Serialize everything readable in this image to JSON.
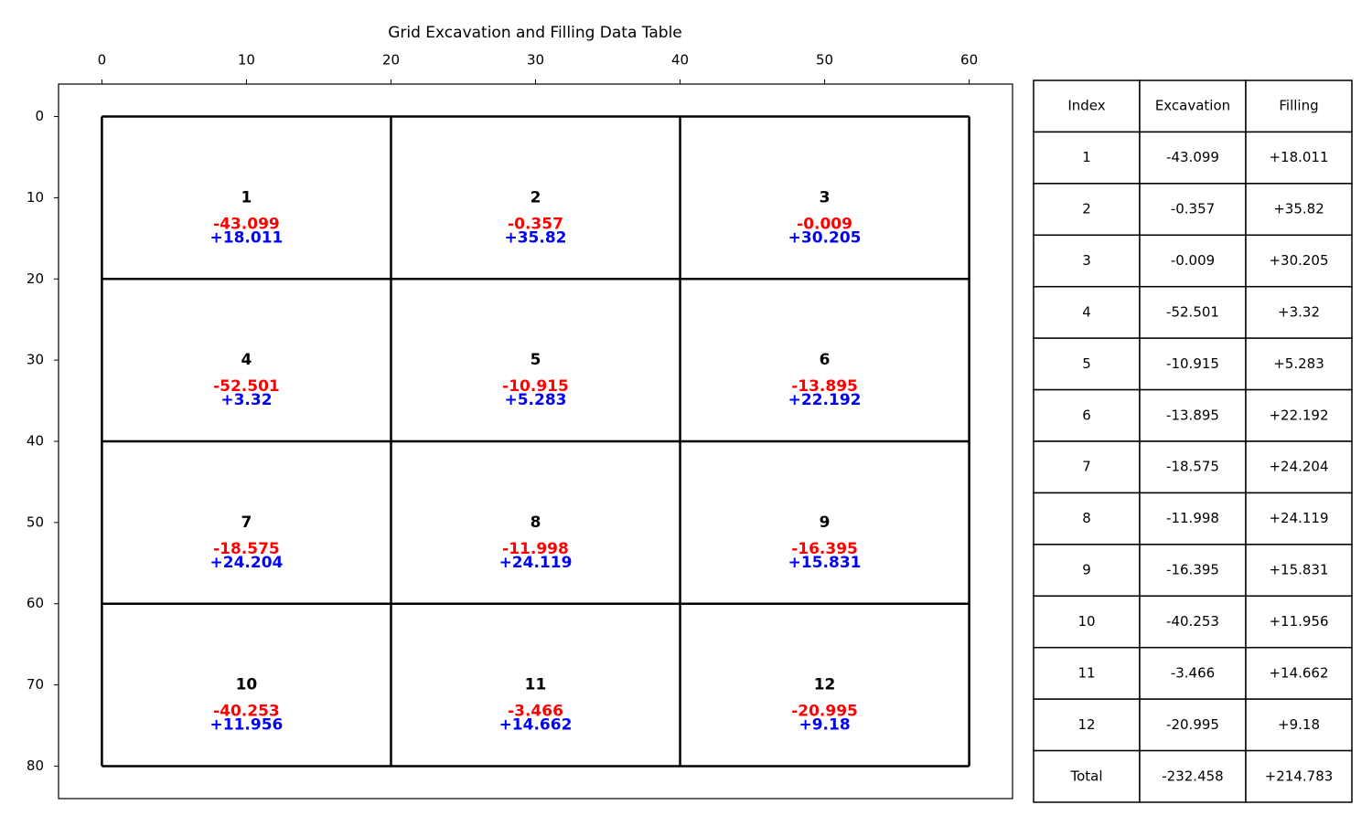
{
  "chart_data": {
    "type": "grid",
    "title": "Grid Excavation and Filling Data Table",
    "xlim": [
      -3,
      63
    ],
    "ylim": [
      -4,
      84
    ],
    "y_inverted": true,
    "xticks": [
      0,
      10,
      20,
      30,
      40,
      50,
      60
    ],
    "yticks": [
      0,
      10,
      20,
      30,
      40,
      50,
      60,
      70,
      80
    ],
    "grid_x": [
      0,
      20,
      40,
      60
    ],
    "grid_y": [
      0,
      20,
      40,
      60,
      80
    ],
    "cell_index": [
      1,
      2,
      3,
      4,
      5,
      6,
      7,
      8,
      9,
      10,
      11,
      12
    ],
    "excavation": [
      -43.099,
      -0.357,
      -0.009,
      -52.501,
      -10.915,
      -13.895,
      -18.575,
      -11.998,
      -16.395,
      -40.253,
      -3.466,
      -20.995
    ],
    "filling": [
      18.011,
      35.82,
      30.205,
      3.32,
      5.283,
      22.192,
      24.204,
      24.119,
      15.831,
      11.956,
      14.662,
      9.18
    ],
    "filling_labels": [
      "+18.011",
      "+35.82",
      "+30.205",
      "+3.32",
      "+5.283",
      "+22.192",
      "+24.204",
      "+24.119",
      "+15.831",
      "+11.956",
      "+14.662",
      "+9.18"
    ],
    "excavation_color": "#ff0000",
    "filling_color": "#0000ff"
  },
  "table": {
    "header": [
      "Index",
      "Excavation",
      "Filling"
    ],
    "rows": [
      [
        "1",
        "-43.099",
        "+18.011"
      ],
      [
        "2",
        "-0.357",
        "+35.82"
      ],
      [
        "3",
        "-0.009",
        "+30.205"
      ],
      [
        "4",
        "-52.501",
        "+3.32"
      ],
      [
        "5",
        "-10.915",
        "+5.283"
      ],
      [
        "6",
        "-13.895",
        "+22.192"
      ],
      [
        "7",
        "-18.575",
        "+24.204"
      ],
      [
        "8",
        "-11.998",
        "+24.119"
      ],
      [
        "9",
        "-16.395",
        "+15.831"
      ],
      [
        "10",
        "-40.253",
        "+11.956"
      ],
      [
        "11",
        "-3.466",
        "+14.662"
      ],
      [
        "12",
        "-20.995",
        "+9.18"
      ],
      [
        "Total",
        "-232.458",
        "+214.783"
      ]
    ]
  }
}
